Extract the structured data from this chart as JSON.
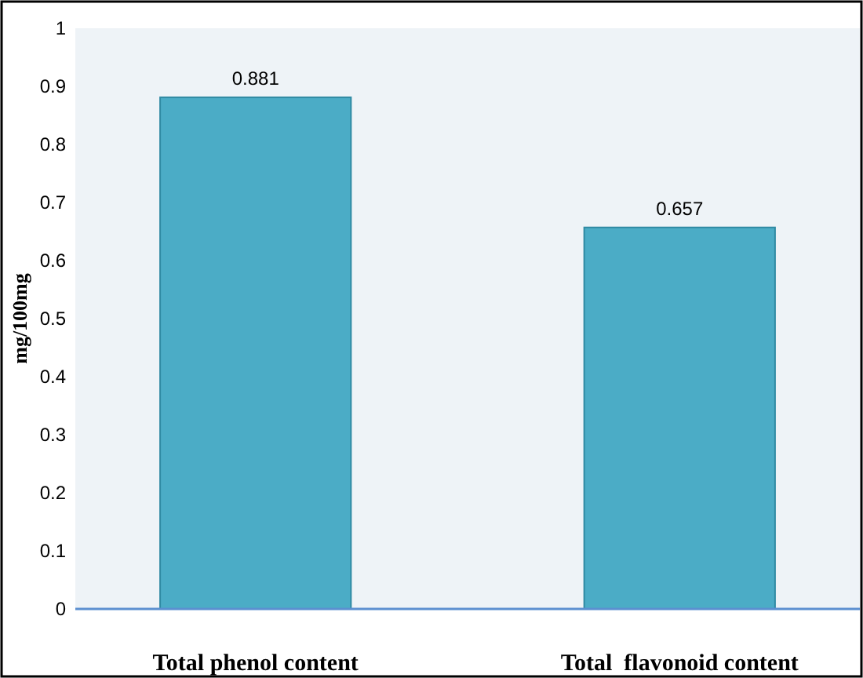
{
  "chart_data": {
    "type": "bar",
    "categories": [
      "Total phenol content",
      "Total  flavonoid content"
    ],
    "values": [
      0.881,
      0.657
    ],
    "color": "#4bacc6",
    "ylabel": "mg/100mg",
    "ylim": [
      0,
      1
    ],
    "yticks": [
      0,
      0.1,
      0.2,
      0.3,
      0.4,
      0.5,
      0.6,
      0.7,
      0.8,
      0.9,
      1
    ],
    "data_labels": true,
    "grid": false
  }
}
